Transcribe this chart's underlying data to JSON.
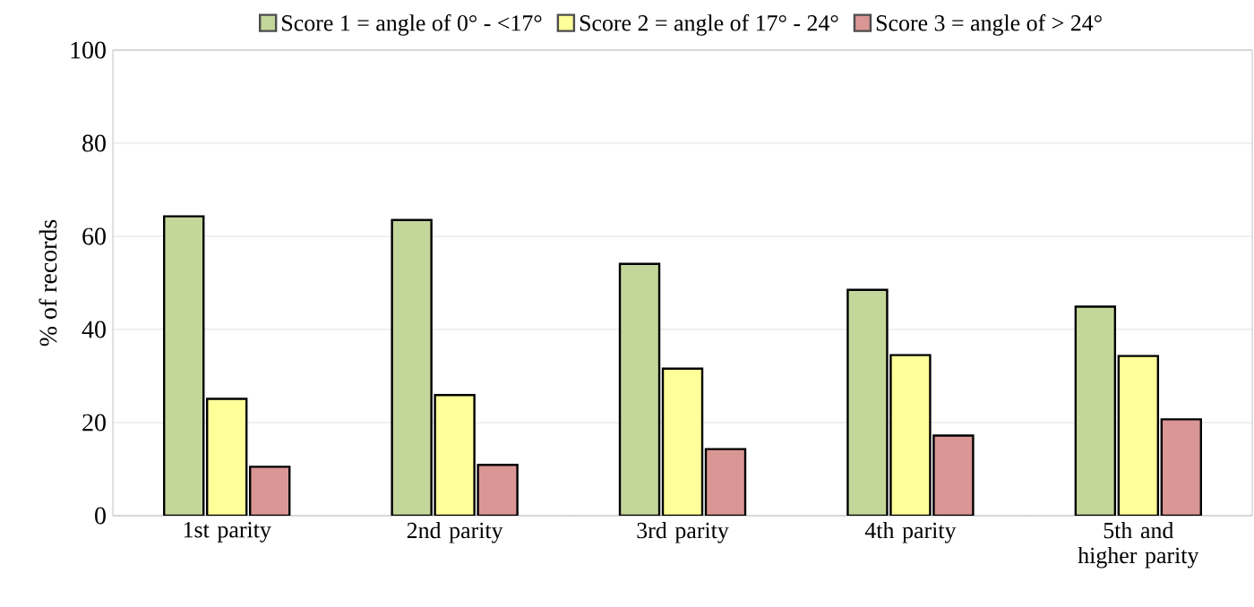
{
  "chart_data": {
    "type": "bar",
    "ylabel": "% of records",
    "categories": [
      "1st parity",
      "2nd parity",
      "3rd parity",
      "4th parity",
      "5th and higher parity"
    ],
    "series": [
      {
        "name": "Score 1 = angle of 0° - <17°",
        "color": "#c4d79b",
        "values": [
          64.3,
          63.5,
          54.1,
          48.5,
          44.9
        ]
      },
      {
        "name": "Score 2 = angle of 17° - 24°",
        "color": "#ffff99",
        "values": [
          25.1,
          25.9,
          31.6,
          34.5,
          34.3
        ]
      },
      {
        "name": "Score 3 = angle of > 24°",
        "color": "#da9694",
        "values": [
          10.5,
          10.9,
          14.3,
          17.2,
          20.7
        ]
      }
    ],
    "ylim": [
      0,
      100
    ],
    "yticks": [
      0,
      20,
      40,
      60,
      80,
      100
    ],
    "grid": "y",
    "legend": "top"
  }
}
